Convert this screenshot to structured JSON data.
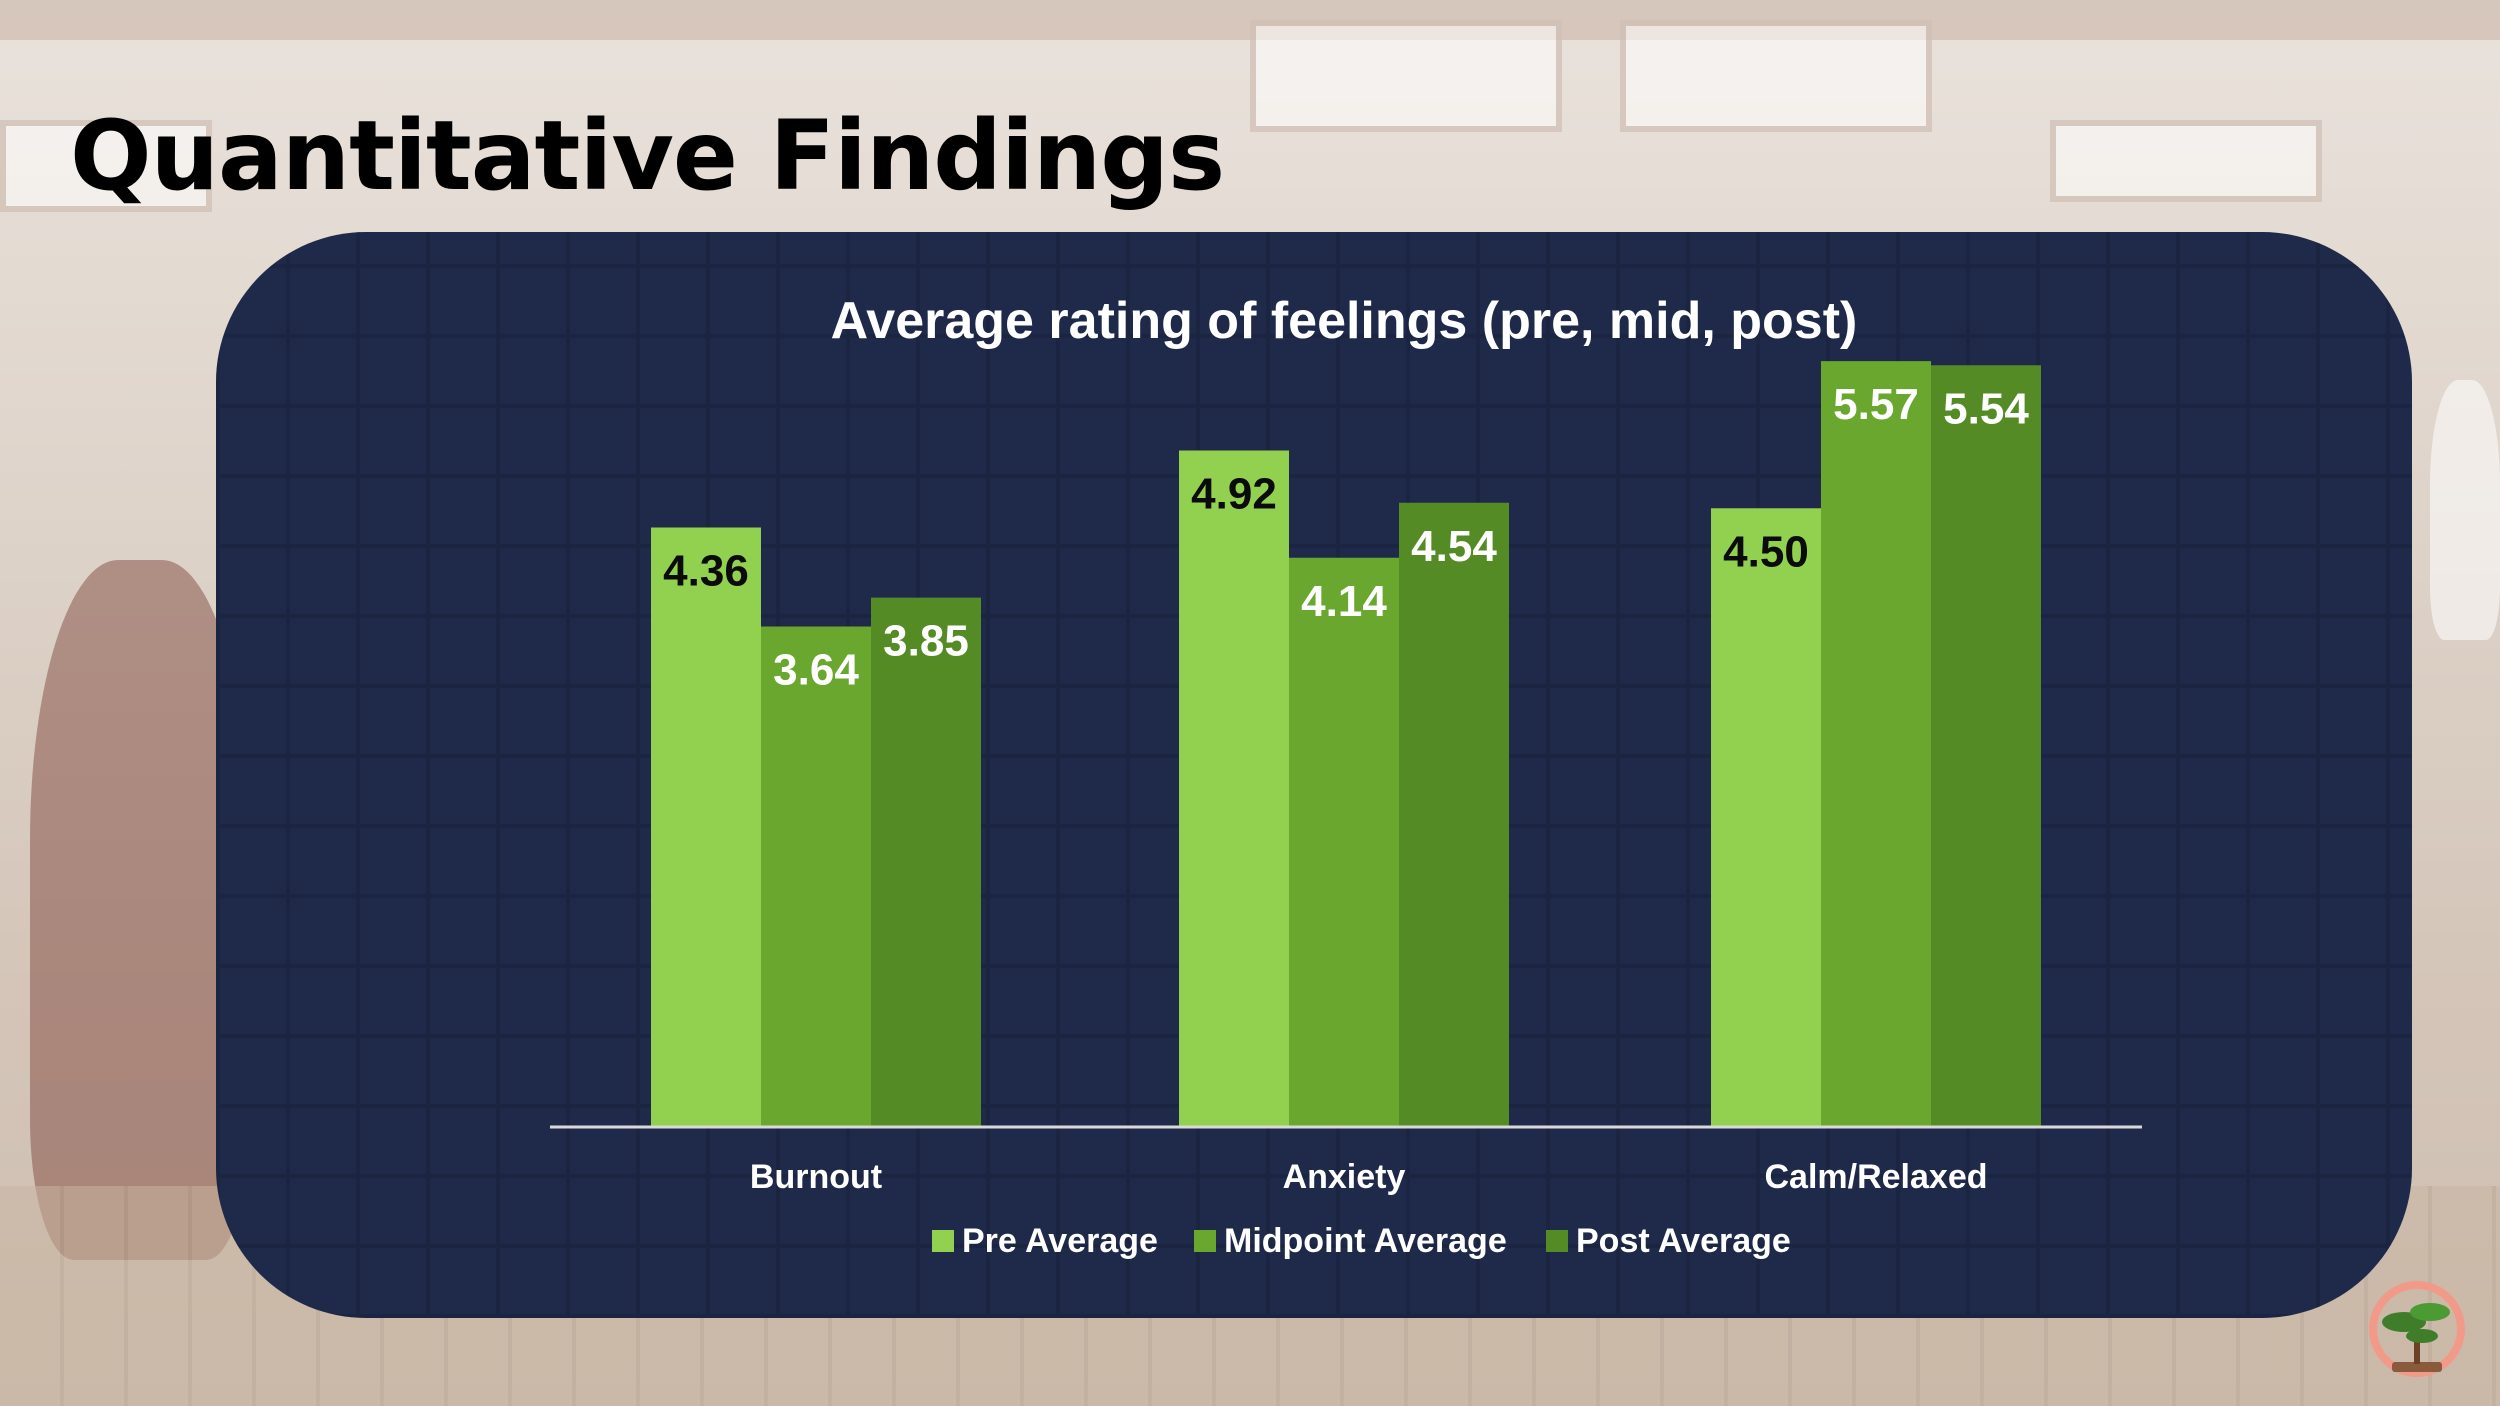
{
  "slide": {
    "title": "Quantitative Findings"
  },
  "colors": {
    "panel": "#1f2a4a",
    "pre": "#92d050",
    "mid": "#6aa72f",
    "post": "#548b25"
  },
  "chart_data": {
    "type": "bar",
    "title": "Average rating of feelings (pre, mid, post)",
    "categories": [
      "Burnout",
      "Anxiety",
      "Calm/Relaxed"
    ],
    "series": [
      {
        "name": "Pre Average",
        "values": [
          4.36,
          4.92,
          4.5
        ],
        "color": "#92d050",
        "label_color": "#0b0b0b"
      },
      {
        "name": "Midpoint Average",
        "values": [
          3.64,
          4.14,
          5.57
        ],
        "color": "#6aa72f",
        "label_color": "#ffffff"
      },
      {
        "name": "Post Average",
        "values": [
          3.85,
          4.54,
          5.54
        ],
        "color": "#548b25",
        "label_color": "#ffffff"
      }
    ],
    "ylim": [
      0,
      6
    ],
    "grid": false,
    "legend": "bottom"
  }
}
